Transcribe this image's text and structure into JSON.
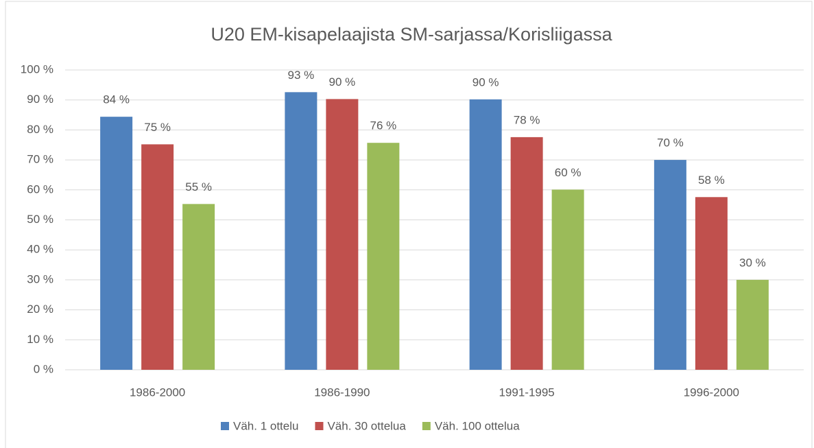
{
  "chart_data": {
    "type": "bar",
    "title": "U20 EM-kisapelaajista SM-sarjassa/Korisliigassa",
    "categories": [
      "1986-2000",
      "1986-1990",
      "1991-1995",
      "1996-2000"
    ],
    "series": [
      {
        "name": "Väh. 1 ottelu",
        "color": "#4f81bd",
        "values": [
          84.4,
          92.6,
          90.2,
          70
        ],
        "value_labels": [
          "84 %",
          "93 %",
          "90 %",
          "70 %"
        ]
      },
      {
        "name": "Väh. 30 ottelua",
        "color": "#c0504d",
        "values": [
          75.2,
          90.3,
          77.6,
          57.6
        ],
        "value_labels": [
          "75 %",
          "90 %",
          "78 %",
          "58 %"
        ]
      },
      {
        "name": "Väh. 100 ottelua",
        "color": "#9bbb59",
        "values": [
          55.3,
          75.7,
          60.1,
          30
        ],
        "value_labels": [
          "55 %",
          "76 %",
          "60 %",
          "30 %"
        ]
      }
    ],
    "ylim": [
      0,
      100
    ],
    "yticks": [
      {
        "value": 0,
        "label": "0 %"
      },
      {
        "value": 10,
        "label": "10 %"
      },
      {
        "value": 20,
        "label": "20 %"
      },
      {
        "value": 30,
        "label": "30 %"
      },
      {
        "value": 40,
        "label": "40 %"
      },
      {
        "value": 50,
        "label": "50 %"
      },
      {
        "value": 60,
        "label": "60 %"
      },
      {
        "value": 70,
        "label": "70 %"
      },
      {
        "value": 80,
        "label": "80 %"
      },
      {
        "value": 90,
        "label": "90 %"
      },
      {
        "value": 100,
        "label": "100 %"
      }
    ],
    "grid": true,
    "legend": "bottom"
  }
}
